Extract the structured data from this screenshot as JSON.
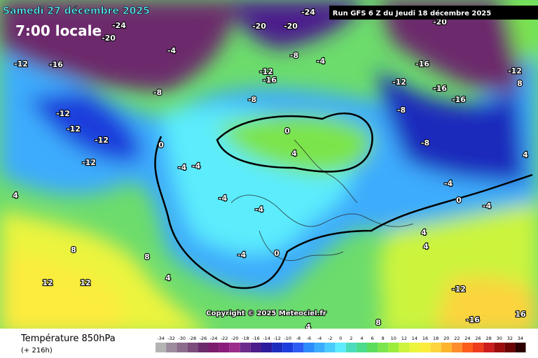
{
  "header": {
    "title": "Samedi 27 décembre 2025",
    "time": "7:00 locale",
    "run": "Run GFS 6 Z du Jeudi 18 décembre 2025"
  },
  "copyright": "Copyright © 2025 Meteociel.fr",
  "map_labels": [
    "-24",
    "-20",
    "-16",
    "-12",
    "-12",
    "-12",
    "-12",
    "-12",
    "-8",
    "-4",
    "-4",
    "-4",
    "0",
    "4",
    "8",
    "12",
    "12",
    "8",
    "4",
    "-4",
    "-4",
    "-8",
    "-12",
    "-16",
    "-20",
    "-20",
    "-24",
    "-8",
    "-4",
    "0",
    "4",
    "-12",
    "-16",
    "-16",
    "-8",
    "-8",
    "-16",
    "-20",
    "-12",
    "-4",
    "-4",
    "0",
    "4",
    "4",
    "-12",
    "-16",
    "16",
    "8",
    "4",
    "0",
    "-4",
    "4",
    "8"
  ],
  "footer": {
    "title": "Température 850hPa",
    "lead": "(+ 216h)"
  },
  "legend": {
    "values": [
      -34,
      -32,
      -30,
      -28,
      -26,
      -24,
      -22,
      -20,
      -18,
      -16,
      -14,
      -12,
      -10,
      -8,
      -6,
      -4,
      -2,
      0,
      2,
      4,
      6,
      8,
      10,
      12,
      14,
      16,
      18,
      20,
      22,
      24,
      26,
      28,
      30,
      32,
      34
    ],
    "colors": [
      "#b4b4b4",
      "#9c8c9c",
      "#8c6c8c",
      "#7c4c7c",
      "#6c2c6c",
      "#7c1c6c",
      "#8c1c7c",
      "#9c2c8c",
      "#6c2c8c",
      "#4c1c8c",
      "#2c1c9c",
      "#1c2cbc",
      "#1c3cdc",
      "#2c5cf4",
      "#2c8cfc",
      "#3cacfc",
      "#4cccfc",
      "#5cecfc",
      "#4cdcbc",
      "#4cdc8c",
      "#5cdc5c",
      "#7ce44c",
      "#9cec3c",
      "#ccf43c",
      "#ecf43c",
      "#fcec3c",
      "#fcd43c",
      "#fcb42c",
      "#fc8c2c",
      "#fc5c1c",
      "#ec3c1c",
      "#cc1c1c",
      "#9c0c0c",
      "#6c0404",
      "#2c0000"
    ]
  }
}
